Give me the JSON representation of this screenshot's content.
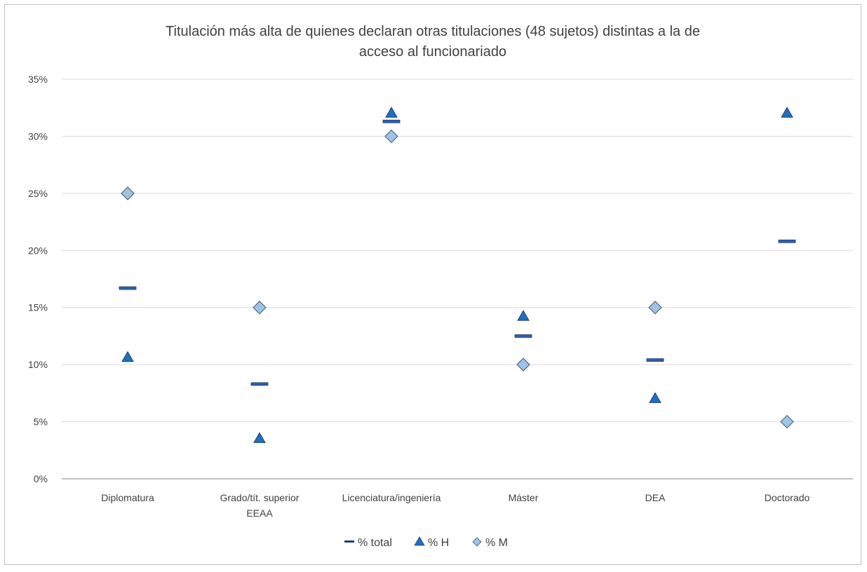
{
  "chart_data": {
    "type": "scatter",
    "title_lines": [
      "Titulación más alta de quienes declaran otras titulaciones (48 sujetos) distintas a la de",
      "acceso al funcionariado"
    ],
    "categories": [
      [
        "Diplomatura"
      ],
      [
        "Grado/tít. superior",
        "EEAA"
      ],
      [
        "Licenciatura/ingeniería"
      ],
      [
        "Máster"
      ],
      [
        "DEA"
      ],
      [
        "Doctorado"
      ]
    ],
    "y_ticks": [
      "0%",
      "5%",
      "10%",
      "15%",
      "20%",
      "25%",
      "30%",
      "35%"
    ],
    "ylim": [
      0,
      35
    ],
    "grid": true,
    "legend_position": "bottom",
    "series": [
      {
        "name": "% total",
        "marker": "dash",
        "color": "#2e5faa",
        "values": [
          16.7,
          8.3,
          31.3,
          12.5,
          10.4,
          20.8
        ]
      },
      {
        "name": "% H",
        "marker": "triangle",
        "color": "#1f6fbf",
        "values": [
          10.7,
          3.6,
          32.1,
          14.3,
          7.1,
          32.1
        ]
      },
      {
        "name": "% M",
        "marker": "diamond",
        "color": "#9dc3e6",
        "values": [
          25,
          15,
          30,
          10,
          15,
          5
        ]
      }
    ]
  }
}
